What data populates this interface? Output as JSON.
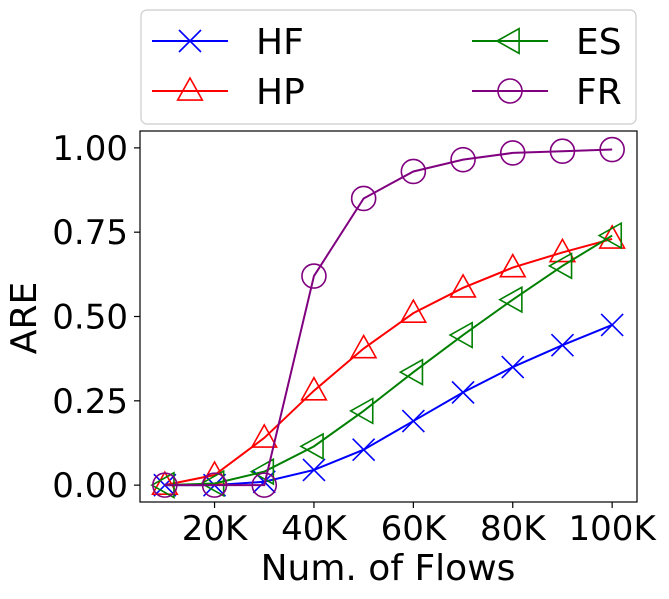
{
  "chart_data": {
    "type": "line",
    "title": "",
    "xlabel": "Num. of Flows",
    "ylabel": "ARE",
    "x": [
      10000,
      20000,
      30000,
      40000,
      50000,
      60000,
      70000,
      80000,
      90000,
      100000
    ],
    "xlim": [
      5000,
      105000
    ],
    "ylim": [
      -0.05,
      1.05
    ],
    "x_ticks": [
      {
        "value": 20000,
        "label": "20K"
      },
      {
        "value": 40000,
        "label": "40K"
      },
      {
        "value": 60000,
        "label": "60K"
      },
      {
        "value": 80000,
        "label": "80K"
      },
      {
        "value": 100000,
        "label": "100K"
      }
    ],
    "y_ticks": [
      {
        "value": 0.0,
        "label": "0.00"
      },
      {
        "value": 0.25,
        "label": "0.25"
      },
      {
        "value": 0.5,
        "label": "0.50"
      },
      {
        "value": 0.75,
        "label": "0.75"
      },
      {
        "value": 1.0,
        "label": "1.00"
      }
    ],
    "grid": false,
    "legend_position": "top",
    "series": [
      {
        "name": "HF",
        "color": "#0000ff",
        "marker": "x",
        "values": [
          0.0,
          0.0,
          0.01,
          0.045,
          0.105,
          0.19,
          0.275,
          0.35,
          0.415,
          0.475
        ]
      },
      {
        "name": "HP",
        "color": "#ff0000",
        "marker": "triangle-up",
        "values": [
          0.0,
          0.03,
          0.14,
          0.28,
          0.405,
          0.51,
          0.585,
          0.645,
          0.69,
          0.73
        ]
      },
      {
        "name": "ES",
        "color": "#008000",
        "marker": "triangle-left",
        "values": [
          0.0,
          0.005,
          0.04,
          0.115,
          0.22,
          0.335,
          0.445,
          0.55,
          0.65,
          0.74
        ]
      },
      {
        "name": "FR",
        "color": "#800080",
        "marker": "circle",
        "values": [
          0.0,
          0.0,
          0.0,
          0.62,
          0.85,
          0.93,
          0.965,
          0.985,
          0.99,
          0.995
        ]
      }
    ]
  }
}
